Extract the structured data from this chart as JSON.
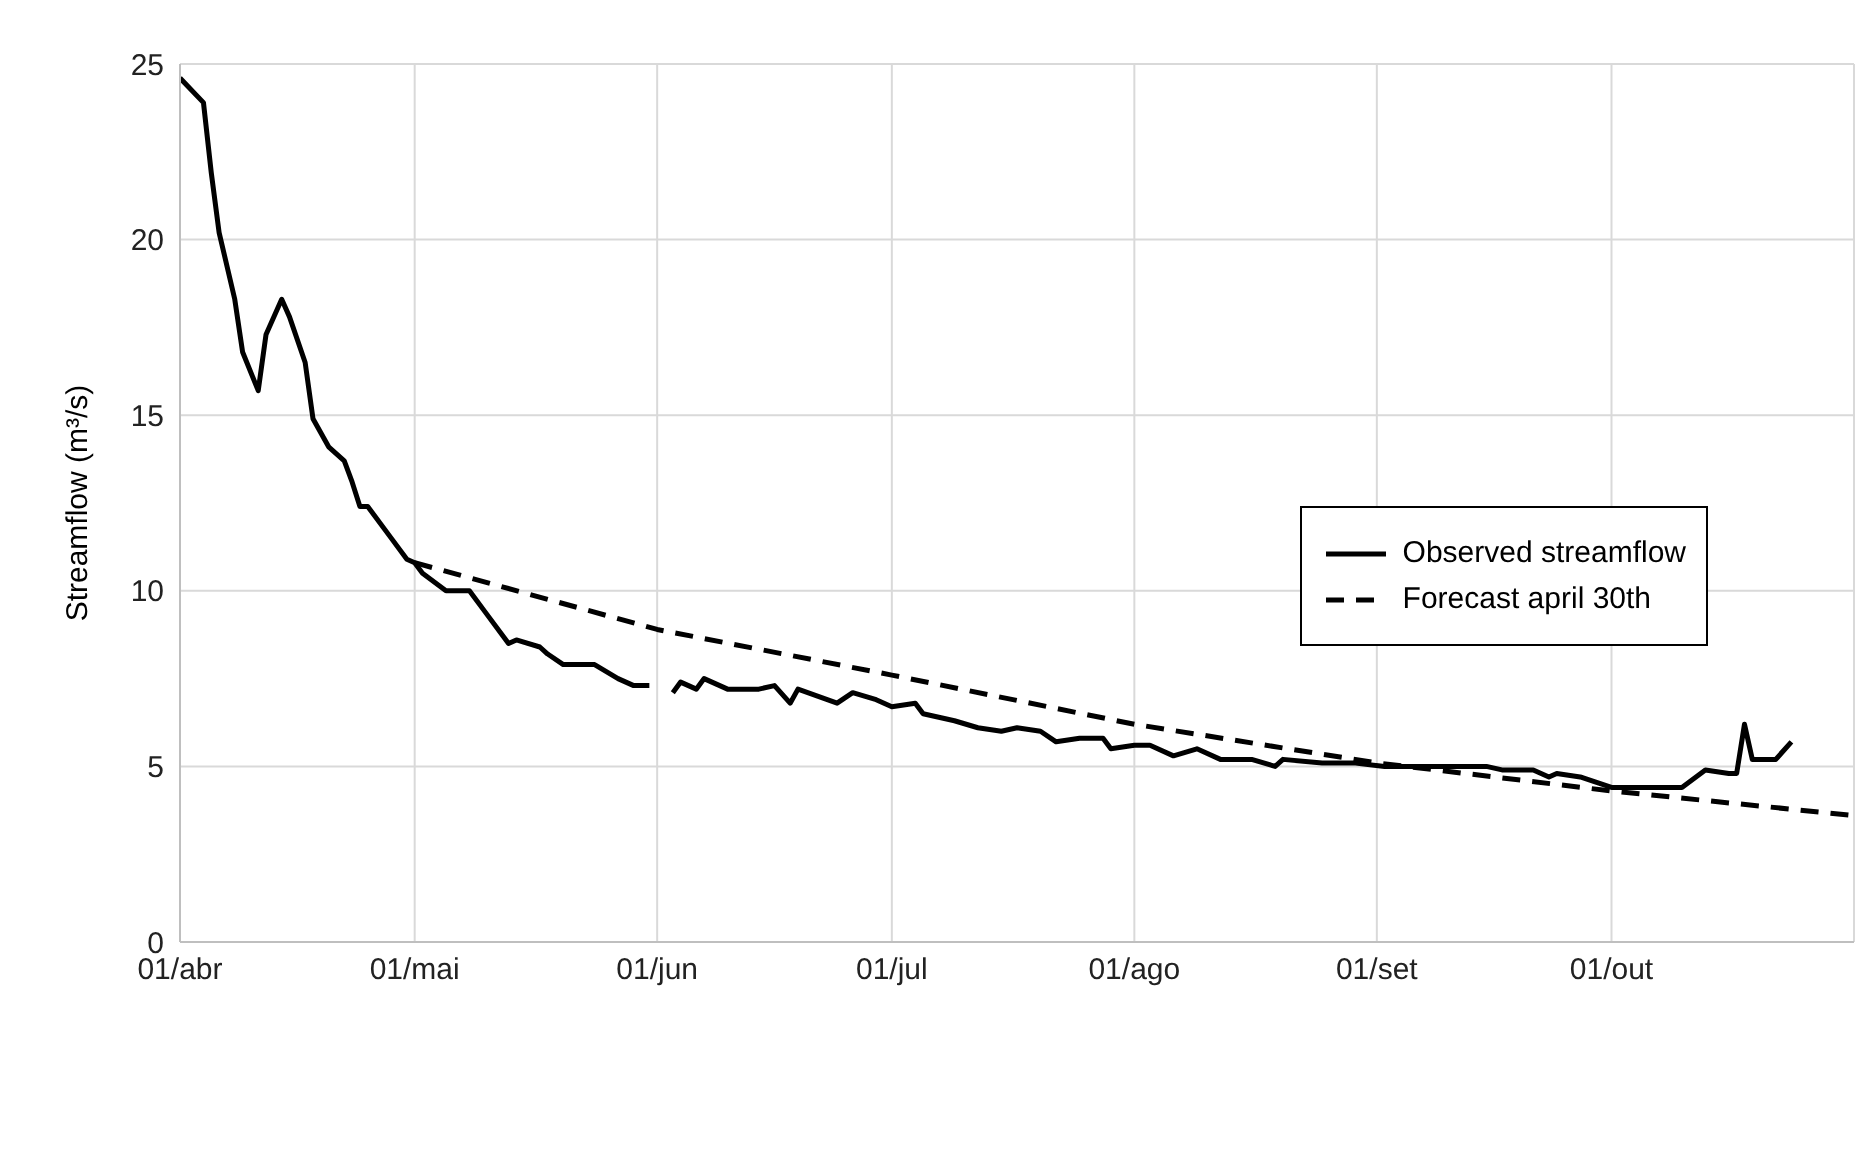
{
  "chart_data": {
    "type": "line",
    "ylabel": "Streamflow (m³/s)",
    "xlim": [
      "--04-01",
      "--11-01"
    ],
    "xticks": [
      {
        "value": "--04-01",
        "label": "01/abr"
      },
      {
        "value": "--05-01",
        "label": "01/mai"
      },
      {
        "value": "--06-01",
        "label": "01/jun"
      },
      {
        "value": "--07-01",
        "label": "01/jul"
      },
      {
        "value": "--08-01",
        "label": "01/ago"
      },
      {
        "value": "--09-01",
        "label": "01/set"
      },
      {
        "value": "--10-01",
        "label": "01/out"
      },
      {
        "value": "--11-01",
        "label": null
      }
    ],
    "ylim": [
      0,
      25
    ],
    "yticks": [
      0,
      5,
      10,
      15,
      20,
      25
    ],
    "grid": true,
    "legend": "right",
    "marker": "none",
    "series": [
      {
        "name": "Observed streamflow",
        "color": "#000000",
        "line_style": "solid",
        "x": [
          "--04-01",
          "--04-04",
          "--04-05",
          "--04-06",
          "--04-08",
          "--04-09",
          "--04-11",
          "--04-12",
          "--04-14",
          "--04-15",
          "--04-17",
          "--04-18",
          "--04-20",
          "--04-22",
          "--04-23",
          "--04-24",
          "--04-25",
          "--04-28",
          "--04-30",
          "--05-01",
          "--05-02",
          "--05-05",
          "--05-08",
          "--05-10",
          "--05-13",
          "--05-14",
          "--05-17",
          "--05-18",
          "--05-20",
          "--05-24",
          "--05-27",
          "--05-29",
          "--05-31",
          "--06-01",
          "--06-03",
          "--06-04",
          "--06-06",
          "--06-07",
          "--06-10",
          "--06-14",
          "--06-16",
          "--06-18",
          "--06-19",
          "--06-24",
          "--06-26",
          "--06-29",
          "--07-01",
          "--07-04",
          "--07-05",
          "--07-09",
          "--07-12",
          "--07-15",
          "--07-17",
          "--07-20",
          "--07-22",
          "--07-25",
          "--07-28",
          "--07-29",
          "--08-01",
          "--08-03",
          "--08-06",
          "--08-09",
          "--08-12",
          "--08-16",
          "--08-19",
          "--08-20",
          "--08-25",
          "--08-29",
          "--09-02",
          "--09-15",
          "--09-17",
          "--09-21",
          "--09-23",
          "--09-24",
          "--09-27",
          "--10-01",
          "--10-10",
          "--10-13",
          "--10-16",
          "--10-17",
          "--10-18",
          "--10-19",
          "--10-22",
          "--10-24"
        ],
        "values": [
          24.6,
          23.9,
          21.9,
          20.2,
          18.3,
          16.8,
          15.7,
          17.3,
          18.3,
          17.8,
          16.5,
          14.9,
          14.1,
          13.7,
          13.1,
          12.4,
          12.4,
          11.5,
          10.9,
          10.8,
          10.5,
          10.0,
          10.0,
          9.4,
          8.5,
          8.6,
          8.4,
          8.2,
          7.9,
          7.9,
          7.5,
          7.3,
          7.3,
          null,
          7.1,
          7.4,
          7.2,
          7.5,
          7.2,
          7.2,
          7.3,
          6.8,
          7.2,
          6.8,
          7.1,
          6.9,
          6.7,
          6.8,
          6.5,
          6.3,
          6.1,
          6.0,
          6.1,
          6.0,
          5.7,
          5.8,
          5.8,
          5.5,
          5.6,
          5.6,
          5.3,
          5.5,
          5.2,
          5.2,
          5.0,
          5.2,
          5.1,
          5.1,
          5.0,
          5.0,
          4.9,
          4.9,
          4.7,
          4.8,
          4.7,
          4.4,
          4.4,
          4.9,
          4.8,
          4.8,
          6.2,
          5.2,
          5.2,
          5.7
        ]
      },
      {
        "name": "Forecast april 30th",
        "color": "#000000",
        "line_style": "dashed",
        "x": [
          "--05-01",
          "--06-01",
          "--07-01",
          "--08-01",
          "--09-01",
          "--10-01",
          "--11-01"
        ],
        "values": [
          10.8,
          8.9,
          7.6,
          6.2,
          5.1,
          4.3,
          3.6
        ]
      }
    ]
  }
}
